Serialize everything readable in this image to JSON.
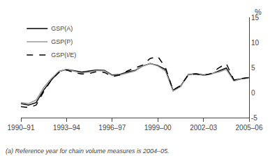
{
  "chart_data": {
    "type": "line",
    "y_label": "%",
    "footnote": "(a) Reference year for chain volume measures is 2004–05.",
    "x": [
      0,
      0.5,
      1.0,
      1.5,
      2.0,
      2.5,
      3.0,
      3.5,
      4.0,
      4.5,
      5.0,
      5.5,
      6.0,
      6.5,
      7.0,
      7.5,
      8.0,
      8.5,
      9.0,
      9.5,
      10.0,
      10.5,
      11.0,
      11.5,
      12.0,
      12.5,
      13.0,
      13.5,
      14.0,
      14.5,
      15.0
    ],
    "xlim": [
      0,
      15
    ],
    "xticks": [
      {
        "value": 0,
        "label": "1990–91"
      },
      {
        "value": 3,
        "label": "1993–94"
      },
      {
        "value": 6,
        "label": "1996–97"
      },
      {
        "value": 9,
        "label": "1999–00"
      },
      {
        "value": 12,
        "label": "2002–03"
      },
      {
        "value": 15,
        "label": "2005–06"
      }
    ],
    "ylim": [
      -5,
      15
    ],
    "yticks": [
      -5,
      0,
      5,
      10,
      15
    ],
    "grid": false,
    "legend": "upper left",
    "series": [
      {
        "name": "GSP(A)",
        "color": "#000000",
        "line_style": "solid",
        "values": [
          -2.2,
          -2.5,
          -2.0,
          0.5,
          2.5,
          4.2,
          4.6,
          4.3,
          4.1,
          4.3,
          4.5,
          4.4,
          3.5,
          3.6,
          4.1,
          4.4,
          5.3,
          5.8,
          5.4,
          4.6,
          0.5,
          1.3,
          3.6,
          3.8,
          3.5,
          3.7,
          4.3,
          4.9,
          2.5,
          2.8,
          3.0
        ]
      },
      {
        "name": "GSP(P)",
        "color": "#999999",
        "line_style": "solid",
        "values": [
          -2.0,
          -2.2,
          -1.5,
          1.0,
          2.8,
          4.2,
          4.6,
          4.2,
          3.9,
          4.1,
          4.4,
          4.3,
          3.4,
          3.5,
          3.9,
          4.3,
          5.3,
          5.8,
          5.3,
          4.3,
          0.3,
          1.2,
          3.5,
          3.7,
          3.4,
          3.7,
          4.1,
          4.6,
          2.3,
          2.7,
          2.9
        ]
      },
      {
        "name": "GSP(I/E)",
        "color": "#000000",
        "line_style": "dashed",
        "values": [
          -2.8,
          -3.0,
          -2.5,
          0.2,
          2.5,
          4.0,
          4.5,
          4.0,
          3.7,
          3.8,
          4.2,
          4.0,
          3.2,
          3.5,
          4.3,
          4.9,
          5.5,
          6.8,
          7.2,
          5.0,
          0.5,
          1.4,
          3.5,
          3.7,
          3.4,
          3.8,
          4.9,
          5.8,
          2.5,
          2.8,
          3.0
        ]
      }
    ]
  }
}
